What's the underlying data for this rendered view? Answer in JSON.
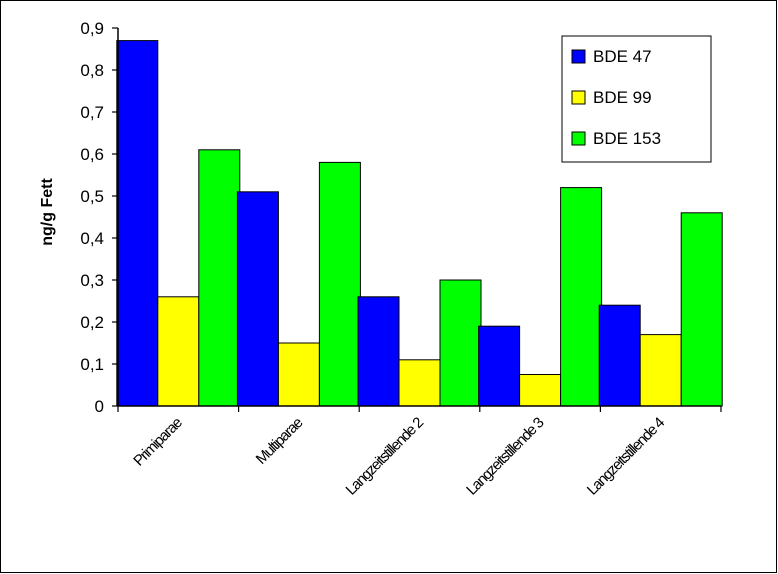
{
  "chart_data": {
    "type": "bar",
    "title": "",
    "xlabel": "",
    "ylabel": "ng/g Fett",
    "ylim": [
      0,
      0.9
    ],
    "yticks": [
      "0",
      "0,1",
      "0,2",
      "0,3",
      "0,4",
      "0,5",
      "0,6",
      "0,7",
      "0,8",
      "0,9"
    ],
    "categories": [
      "Primiparae",
      "Multiparae",
      "Langzeitstillende 2",
      "Langzeitstillende 3",
      "Langzeitstillende 4"
    ],
    "series": [
      {
        "name": "BDE 47",
        "color": "#0000ff",
        "values": [
          0.87,
          0.51,
          0.26,
          0.19,
          0.24
        ]
      },
      {
        "name": "BDE 99",
        "color": "#ffff00",
        "values": [
          0.26,
          0.15,
          0.11,
          0.075,
          0.17
        ]
      },
      {
        "name": "BDE 153",
        "color": "#00ff00",
        "values": [
          0.61,
          0.58,
          0.3,
          0.52,
          0.46
        ]
      }
    ],
    "legend_position": "top-right",
    "grid": false
  }
}
